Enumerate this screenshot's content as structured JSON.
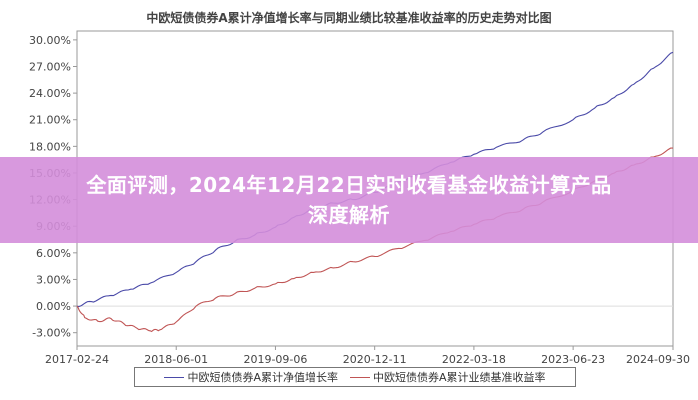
{
  "banner": {
    "line1": "全面评测，2024年12月22日实时收看基金收益计算产品",
    "line2": "深度解析"
  },
  "chart_data": {
    "type": "line",
    "title": "中欧短债债券A累计净值增长率与同期业绩比较基准收益率的历史走势对比图",
    "xlabel": "",
    "ylabel": "",
    "x_ticks": [
      "2017-02-24",
      "2018-06-01",
      "2019-09-06",
      "2020-12-11",
      "2022-03-18",
      "2023-06-23",
      "2024-09-30"
    ],
    "y_ticks": [
      "-3.00%",
      "0.00%",
      "3.00%",
      "6.00%",
      "9.00%",
      "12.00%",
      "15.00%",
      "18.00%",
      "21.00%",
      "24.00%",
      "27.00%",
      "30.00%"
    ],
    "xlim": [
      "2017-02-24",
      "2024-09-30"
    ],
    "ylim": [
      -4.5,
      31
    ],
    "grid": false,
    "legend_position": "bottom",
    "series": [
      {
        "name": "中欧短债债券A累计净值增长率",
        "color": "#4a4aa8",
        "points": [
          [
            "2017-02-24",
            0.0
          ],
          [
            "2017-05-01",
            0.5
          ],
          [
            "2017-08-01",
            1.2
          ],
          [
            "2017-11-01",
            1.9
          ],
          [
            "2018-02-01",
            2.6
          ],
          [
            "2018-06-01",
            3.8
          ],
          [
            "2018-09-01",
            5.0
          ],
          [
            "2018-12-01",
            6.3
          ],
          [
            "2019-03-01",
            7.3
          ],
          [
            "2019-06-01",
            8.0
          ],
          [
            "2019-09-06",
            8.9
          ],
          [
            "2019-12-01",
            10.0
          ],
          [
            "2020-03-01",
            11.0
          ],
          [
            "2020-06-01",
            11.6
          ],
          [
            "2020-09-01",
            12.0
          ],
          [
            "2020-12-11",
            12.8
          ],
          [
            "2021-04-01",
            14.0
          ],
          [
            "2021-08-01",
            15.0
          ],
          [
            "2021-12-01",
            16.2
          ],
          [
            "2022-03-18",
            17.1
          ],
          [
            "2022-07-01",
            17.9
          ],
          [
            "2022-11-01",
            18.7
          ],
          [
            "2023-02-01",
            19.6
          ],
          [
            "2023-06-23",
            21.0
          ],
          [
            "2023-10-01",
            22.3
          ],
          [
            "2024-01-01",
            23.5
          ],
          [
            "2024-04-01",
            25.0
          ],
          [
            "2024-07-01",
            26.8
          ],
          [
            "2024-09-30",
            28.6
          ]
        ]
      },
      {
        "name": "中欧短债债券A累计业绩基准收益率",
        "color": "#c05555",
        "points": [
          [
            "2017-02-24",
            0.0
          ],
          [
            "2017-04-01",
            -1.3
          ],
          [
            "2017-06-01",
            -1.7
          ],
          [
            "2017-08-01",
            -1.4
          ],
          [
            "2017-10-01",
            -2.0
          ],
          [
            "2017-12-01",
            -2.5
          ],
          [
            "2018-02-01",
            -2.8
          ],
          [
            "2018-03-15",
            -2.7
          ],
          [
            "2018-06-01",
            -1.8
          ],
          [
            "2018-09-01",
            0.0
          ],
          [
            "2018-12-01",
            0.9
          ],
          [
            "2019-03-01",
            1.4
          ],
          [
            "2019-06-01",
            2.0
          ],
          [
            "2019-09-06",
            2.5
          ],
          [
            "2019-12-01",
            3.1
          ],
          [
            "2020-03-01",
            3.8
          ],
          [
            "2020-06-01",
            4.3
          ],
          [
            "2020-09-01",
            5.0
          ],
          [
            "2020-12-11",
            5.6
          ],
          [
            "2021-04-01",
            6.5
          ],
          [
            "2021-08-01",
            7.4
          ],
          [
            "2021-12-01",
            8.4
          ],
          [
            "2022-03-18",
            9.2
          ],
          [
            "2022-07-01",
            10.0
          ],
          [
            "2022-11-01",
            10.9
          ],
          [
            "2023-02-01",
            11.7
          ],
          [
            "2023-06-23",
            13.0
          ],
          [
            "2023-10-01",
            14.1
          ],
          [
            "2024-01-01",
            15.0
          ],
          [
            "2024-04-01",
            15.9
          ],
          [
            "2024-07-01",
            16.8
          ],
          [
            "2024-09-30",
            17.8
          ]
        ]
      }
    ]
  }
}
